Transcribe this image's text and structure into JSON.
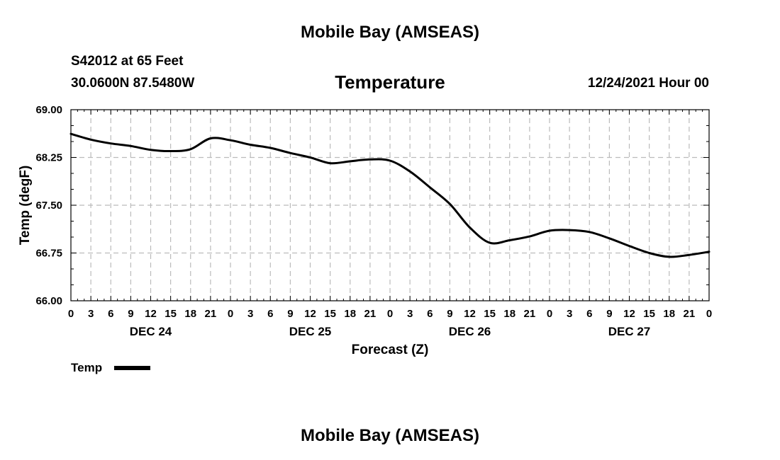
{
  "page": {
    "top_title": "Mobile Bay (AMSEAS)",
    "station_line1": "S42012 at 65 Feet",
    "station_line2": "30.0600N  87.5480W",
    "plot_title": "Temperature",
    "run_time": "12/24/2021 Hour 00",
    "bottom_title": "Mobile Bay (AMSEAS)"
  },
  "chart_data": {
    "type": "line",
    "title": "Temperature",
    "xlabel": "Forecast (Z)",
    "ylabel": "Temp (degF)",
    "ylim": [
      66.0,
      69.0
    ],
    "xlim": [
      0,
      96
    ],
    "grid": true,
    "yticks": [
      "69.00",
      "68.25",
      "67.50",
      "66.75",
      "66.00"
    ],
    "ytick_values": [
      69.0,
      68.25,
      67.5,
      66.75,
      66.0
    ],
    "xtick_labels": [
      "0",
      "3",
      "6",
      "9",
      "12",
      "15",
      "18",
      "21",
      "0",
      "3",
      "6",
      "9",
      "12",
      "15",
      "18",
      "21",
      "0",
      "3",
      "6",
      "9",
      "12",
      "15",
      "18",
      "21",
      "0",
      "3",
      "6",
      "9",
      "12",
      "15",
      "18",
      "21",
      "0"
    ],
    "day_labels": [
      {
        "label": "DEC 24",
        "hour": 12
      },
      {
        "label": "DEC 25",
        "hour": 36
      },
      {
        "label": "DEC 26",
        "hour": 60
      },
      {
        "label": "DEC 27",
        "hour": 84
      }
    ],
    "legend": {
      "label": "Temp",
      "position": "bottom-left"
    },
    "series": [
      {
        "name": "Temp",
        "x": [
          0,
          3,
          6,
          9,
          12,
          15,
          18,
          21,
          24,
          27,
          30,
          33,
          36,
          39,
          42,
          45,
          48,
          51,
          54,
          57,
          60,
          63,
          66,
          69,
          72,
          75,
          78,
          81,
          84,
          87,
          90,
          93,
          96
        ],
        "values": [
          68.62,
          68.53,
          68.47,
          68.43,
          68.37,
          68.35,
          68.38,
          68.55,
          68.52,
          68.45,
          68.4,
          68.32,
          68.25,
          68.16,
          68.19,
          68.22,
          68.2,
          68.03,
          67.78,
          67.52,
          67.15,
          66.91,
          66.95,
          67.01,
          67.1,
          67.11,
          67.08,
          66.98,
          66.86,
          66.75,
          66.69,
          66.72,
          66.77
        ]
      }
    ]
  }
}
